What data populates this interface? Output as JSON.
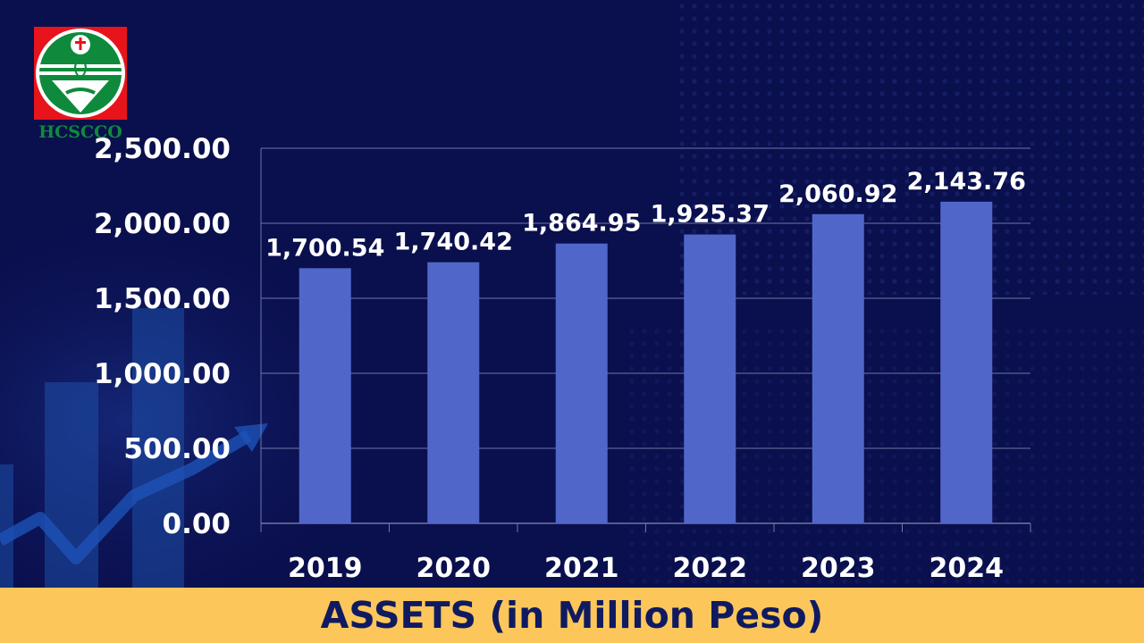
{
  "logo": {
    "text": "HCSCCO",
    "colors": {
      "red": "#e8141c",
      "green": "#0f8a3c",
      "white": "#ffffff"
    }
  },
  "colors": {
    "background": "#0a0f4d",
    "bar": "#5067c9",
    "banner": "#fdc65a",
    "banner_text": "#0f1a60",
    "grid": "#6f77a8"
  },
  "chart_data": {
    "type": "bar",
    "title": "ASSETS (in Million Peso)",
    "categories": [
      "2019",
      "2020",
      "2021",
      "2022",
      "2023",
      "2024"
    ],
    "values": [
      1700.54,
      1740.42,
      1864.95,
      1925.37,
      2060.92,
      2143.76
    ],
    "data_labels": [
      "1,700.54",
      "1,740.42",
      "1,864.95",
      "1,925.37",
      "2,060.92",
      "2,143.76"
    ],
    "yticks": [
      0,
      500,
      1000,
      1500,
      2000,
      2500
    ],
    "ytick_labels": [
      "0.00",
      "500.00",
      "1,000.00",
      "1,500.00",
      "2,000.00",
      "2,500.00"
    ],
    "ylim": [
      0,
      2500
    ],
    "grid": true,
    "legend": "none"
  }
}
